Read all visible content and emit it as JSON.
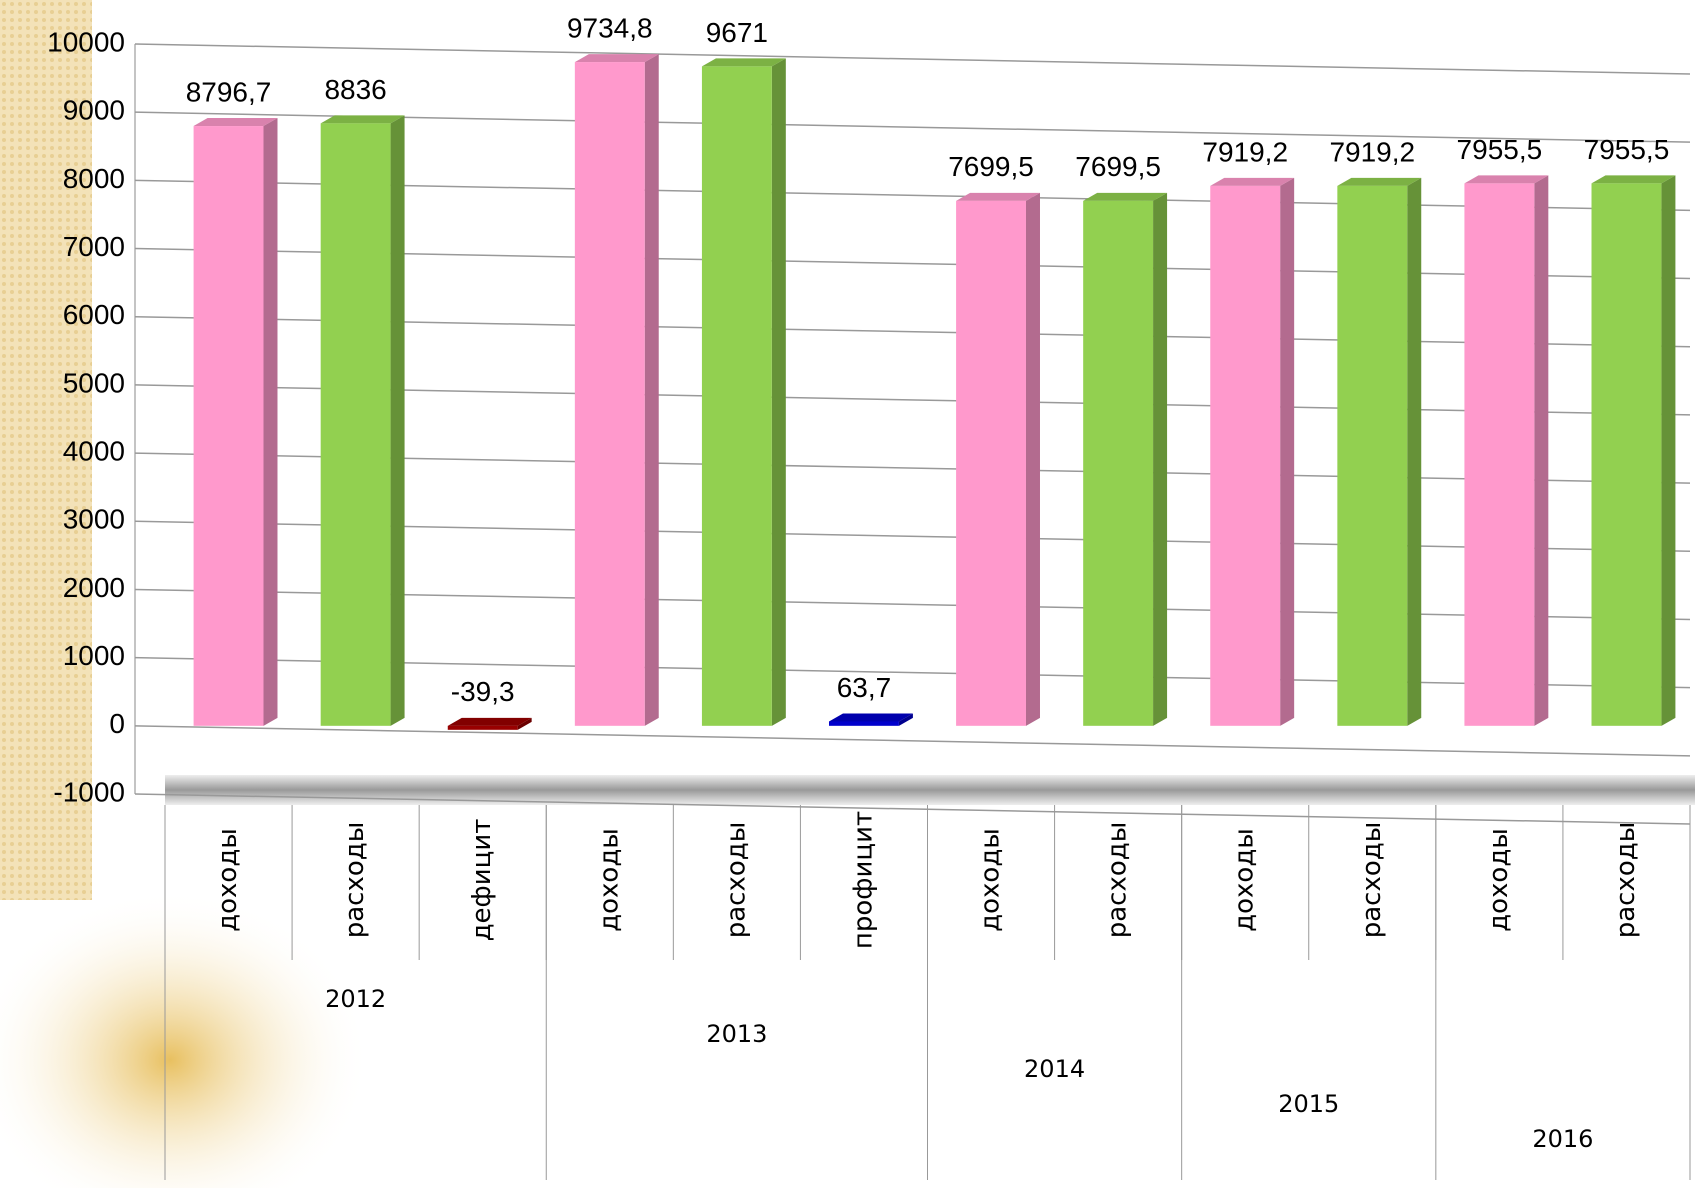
{
  "chart_data": {
    "type": "bar",
    "categories": [
      "доходы",
      "расходы",
      "дефицит",
      "доходы",
      "расходы",
      "профицит",
      "доходы",
      "расходы",
      "доходы",
      "расходы",
      "доходы",
      "расходы"
    ],
    "values": [
      8796.7,
      8836,
      -39.3,
      9734.8,
      9671,
      63.7,
      7699.5,
      7699.5,
      7919.2,
      7919.2,
      7955.5,
      7955.5
    ],
    "value_labels": [
      "8796,7",
      "8836",
      "-39,3",
      "9734,8",
      "9671",
      "63,7",
      "7699,5",
      "7699,5",
      "7919,2",
      "7919,2",
      "7955,5",
      "7955,5"
    ],
    "colors": [
      "#ff99cc",
      "#92d050",
      "#990000",
      "#ff99cc",
      "#92d050",
      "#0000cc",
      "#ff99cc",
      "#92d050",
      "#ff99cc",
      "#92d050",
      "#ff99cc",
      "#92d050"
    ],
    "groups": [
      {
        "label": "2012",
        "size": 3
      },
      {
        "label": "2013",
        "size": 3
      },
      {
        "label": "2014",
        "size": 2
      },
      {
        "label": "2015",
        "size": 2
      },
      {
        "label": "2016",
        "size": 2
      }
    ],
    "ylim": [
      -1000,
      10000
    ],
    "yticks": [
      -1000,
      0,
      1000,
      2000,
      3000,
      4000,
      5000,
      6000,
      7000,
      8000,
      9000,
      10000
    ],
    "grid": true
  }
}
